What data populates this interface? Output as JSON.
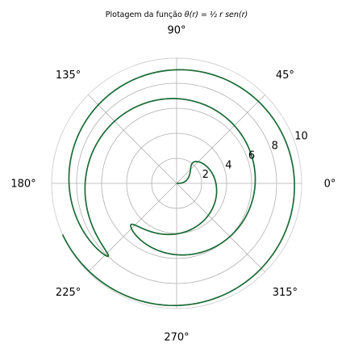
{
  "chart_data": {
    "type": "line",
    "projection": "polar",
    "title_text": "Plotagem da função ",
    "title_math": "θ(r) = ½ r sen(r)",
    "function": "theta = 0.5 * r * sin(r)",
    "r_range": [
      0,
      10
    ],
    "angle_tick_labels": [
      "0°",
      "45°",
      "90°",
      "135°",
      "180°",
      "225°",
      "270°",
      "315°"
    ],
    "radial_ticks": [
      2,
      4,
      6,
      8,
      10
    ],
    "radial_tick_labels": [
      "2",
      "4",
      "6",
      "8",
      "10"
    ],
    "rlim": [
      0,
      10
    ],
    "grid": true,
    "series": [
      {
        "color": "#1b6b35"
      }
    ]
  }
}
